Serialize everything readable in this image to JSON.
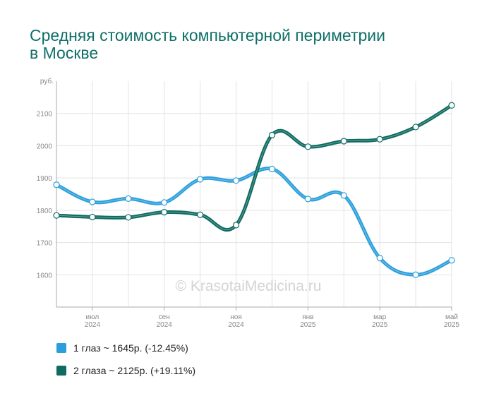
{
  "chart_data": {
    "type": "line",
    "title_lines": [
      "Средняя стоимость компьютерной периметрии",
      "в Москве"
    ],
    "y_unit": "руб.",
    "ylim": [
      1500,
      2200
    ],
    "y_ticks": [
      1600,
      1700,
      1800,
      1900,
      2000,
      2100
    ],
    "x_count": 12,
    "x_ticks": [
      {
        "index": 1,
        "month": "июл",
        "year": "2024"
      },
      {
        "index": 3,
        "month": "сен",
        "year": "2024"
      },
      {
        "index": 5,
        "month": "ноя",
        "year": "2024"
      },
      {
        "index": 7,
        "month": "янв",
        "year": "2025"
      },
      {
        "index": 9,
        "month": "мар",
        "year": "2025"
      },
      {
        "index": 11,
        "month": "май",
        "year": "2025"
      }
    ],
    "grid": true,
    "legend_position": "bottom-left",
    "watermark": "© KrasotaiMedicina.ru",
    "series": [
      {
        "name": "1 глаз",
        "legend_label": "1 глаз ~ 1645р. (-12.45%)",
        "color": "#2b9fdc",
        "values": [
          1879,
          1826,
          1836,
          1824,
          1896,
          1892,
          1928,
          1835,
          1846,
          1652,
          1600,
          1645
        ]
      },
      {
        "name": "2 глаза",
        "legend_label": "2 глаза ~ 2125р. (+19.11%)",
        "color": "#0e6b61",
        "values": [
          1784,
          1779,
          1778,
          1794,
          1786,
          1754,
          2033,
          1997,
          2014,
          2020,
          2058,
          2125
        ]
      }
    ]
  }
}
